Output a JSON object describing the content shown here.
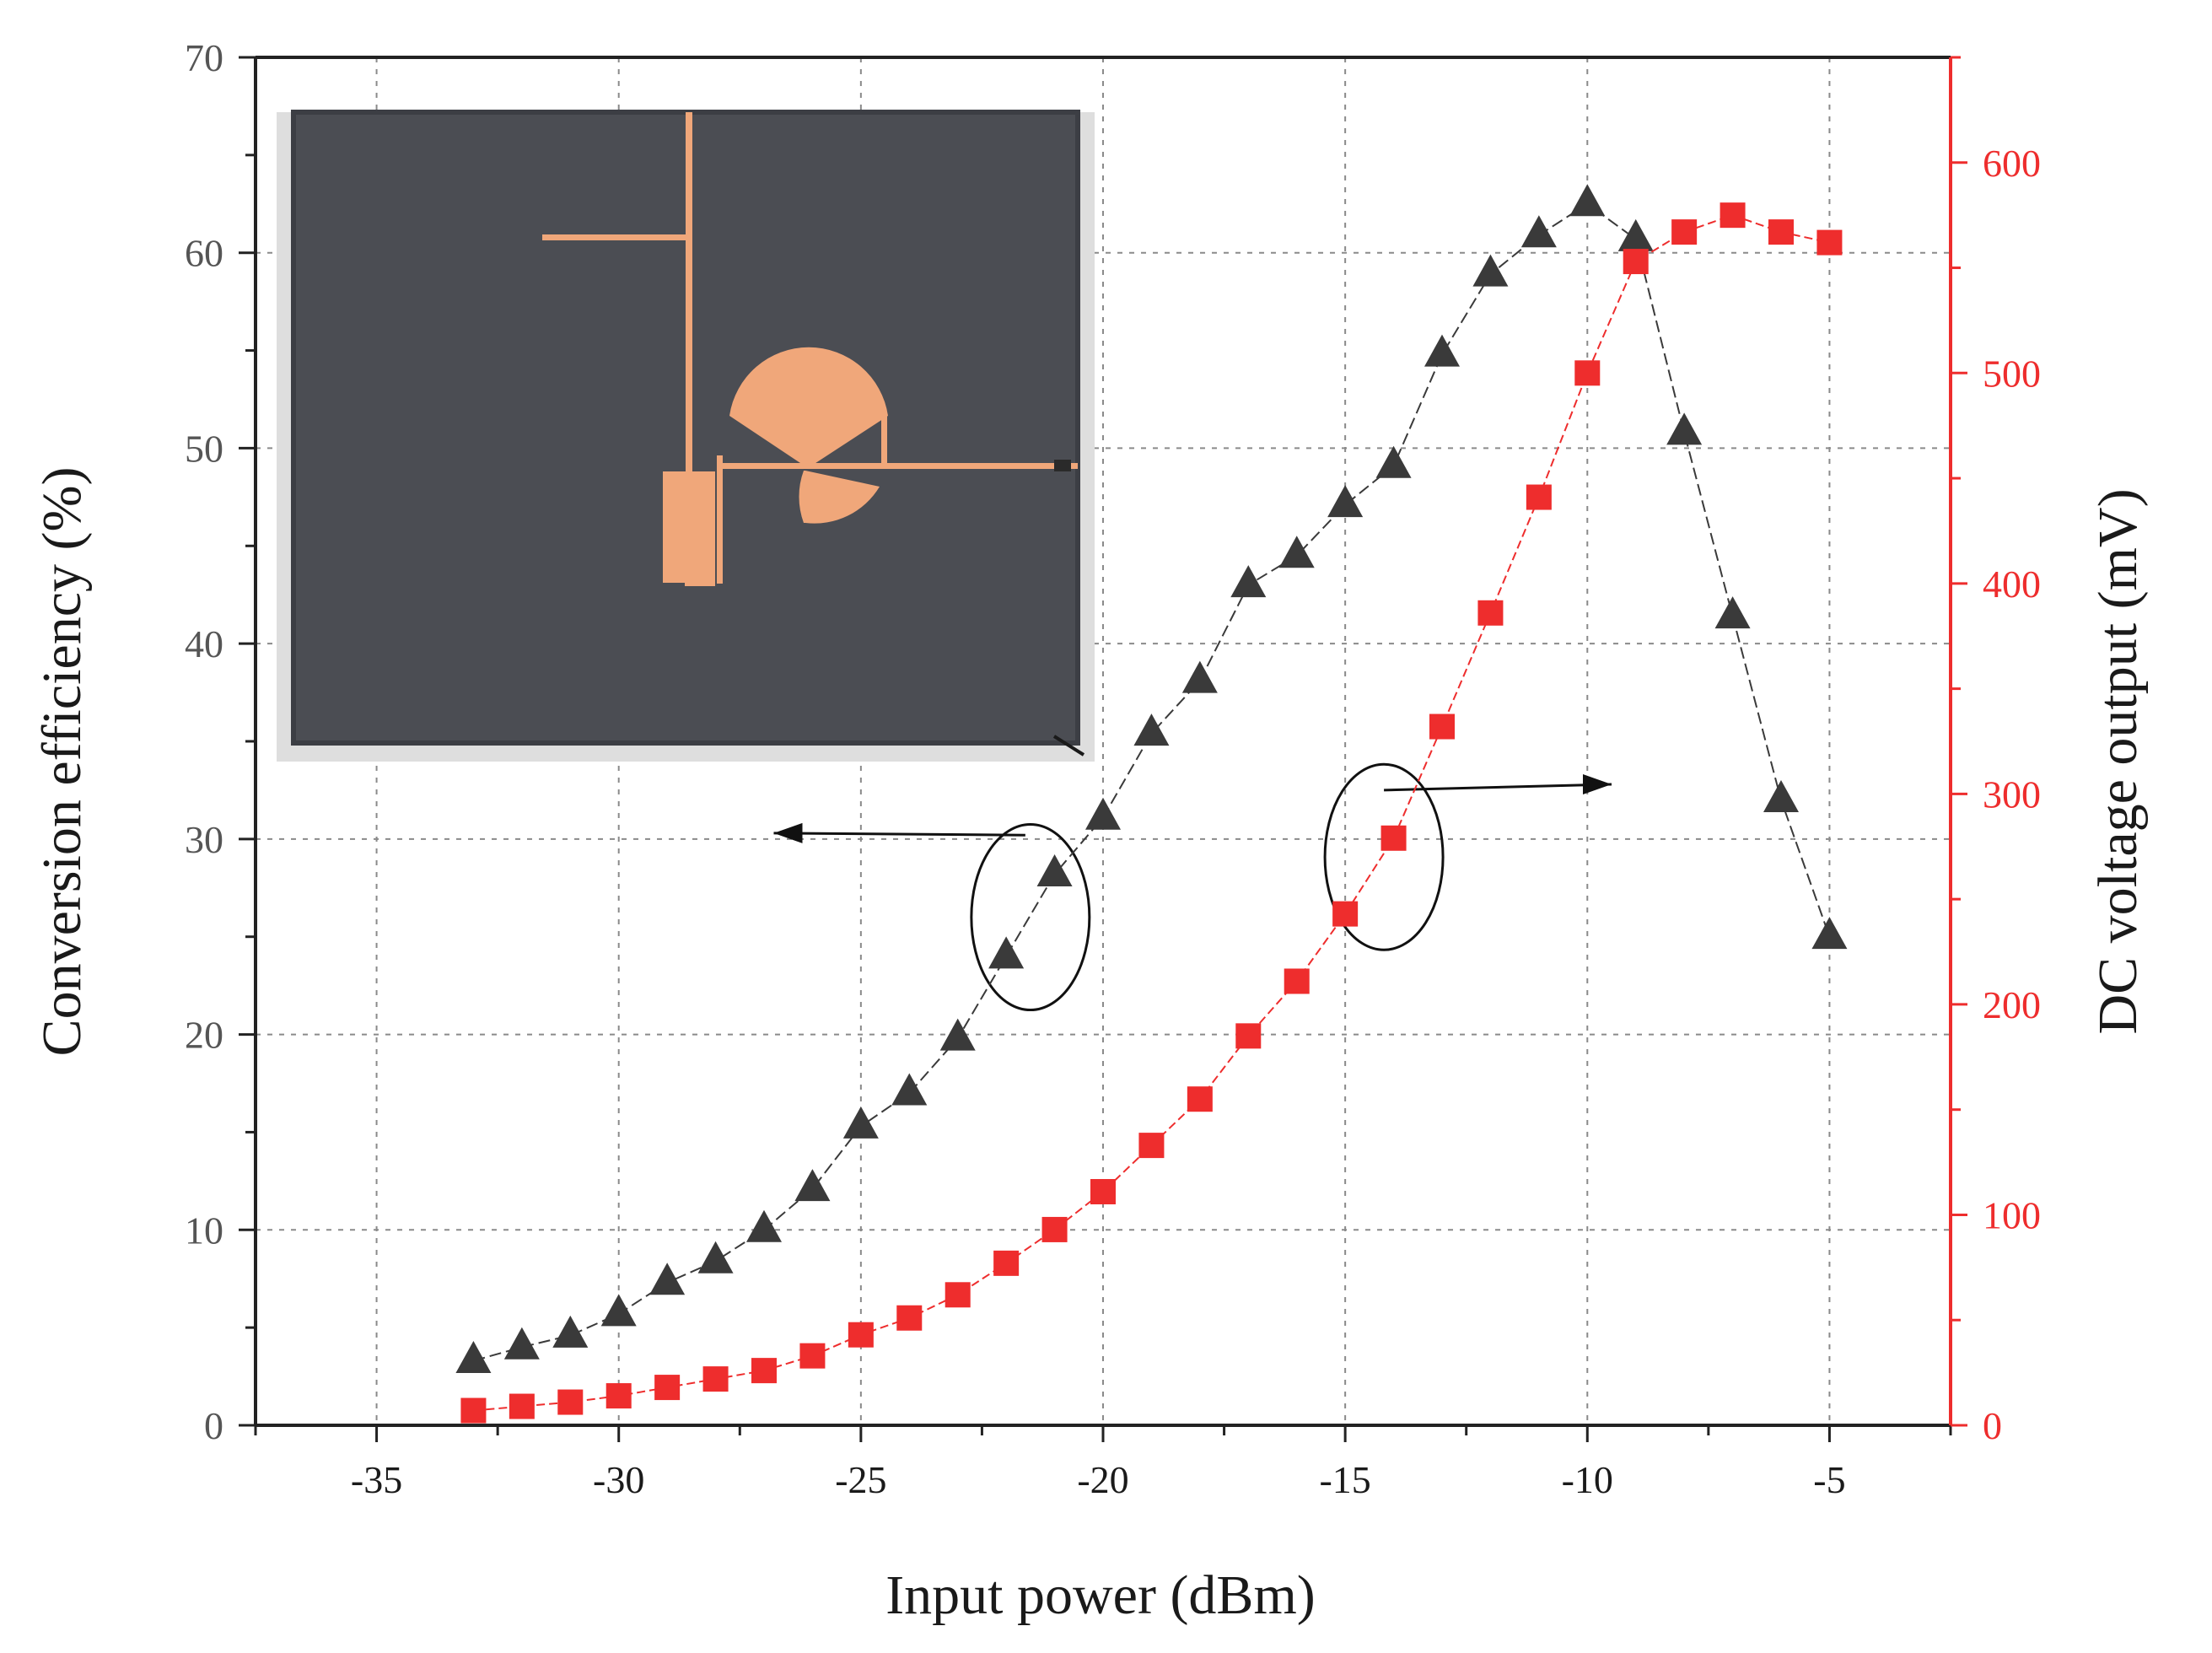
{
  "chart_data": {
    "type": "line",
    "title": "",
    "xlabel": "Input power (dBm)",
    "ylabel_left": "Conversion efficiency (%)",
    "ylabel_right": "DC voltage output (mV)",
    "xlim": [
      -37.5,
      -2.5
    ],
    "ylim_left": [
      0,
      70
    ],
    "ylim_right": [
      0,
      650
    ],
    "x_ticks": [
      "-35",
      "-30",
      "-25",
      "-20",
      "-15",
      "-10",
      "-5"
    ],
    "y_left_ticks": [
      "0",
      "10",
      "20",
      "30",
      "40",
      "50",
      "60",
      "70"
    ],
    "y_right_ticks": [
      "0",
      "100",
      "200",
      "300",
      "400",
      "500",
      "600"
    ],
    "grid": true,
    "x": [
      -33,
      -32,
      -31,
      -30,
      -29,
      -28,
      -27,
      -26,
      -25,
      -24,
      -23,
      -22,
      -21,
      -20,
      -19,
      -18,
      -17,
      -16,
      -15,
      -14,
      -13,
      -12,
      -11,
      -10,
      -9,
      -8,
      -7,
      -6,
      -5
    ],
    "series": [
      {
        "axis": "left",
        "marker": "triangle",
        "color": "#3a3a3a",
        "values": [
          3.3,
          4.0,
          4.6,
          5.7,
          7.3,
          8.4,
          10.0,
          12.1,
          15.3,
          17.0,
          19.8,
          24.0,
          28.2,
          31.1,
          35.4,
          38.1,
          43.0,
          44.5,
          47.1,
          49.1,
          54.8,
          58.9,
          60.9,
          62.5,
          60.7,
          50.8,
          41.4,
          32.0,
          25.0
        ]
      },
      {
        "axis": "right",
        "marker": "square",
        "color": "#ee2d2d",
        "values": [
          7,
          9,
          11,
          14,
          18,
          22,
          26,
          33,
          43,
          51,
          62,
          77,
          93,
          111,
          133,
          155,
          185,
          211,
          243,
          279,
          332,
          386,
          441,
          500,
          553,
          567,
          575,
          567,
          562
        ]
      }
    ],
    "annotations": [
      {
        "marker": "ellipse",
        "around_x": -21.5,
        "arrow": "left"
      },
      {
        "marker": "ellipse",
        "around_x": -14.2,
        "arrow": "right"
      }
    ],
    "inset": "photo of fabricated rectifier circuit board"
  },
  "colors": {
    "left_axis": "#3a3a3a",
    "right_axis": "#ee2d2d",
    "grid": "#8a8a8a",
    "board": "#4b4d53",
    "copper": "#f0a77a"
  }
}
